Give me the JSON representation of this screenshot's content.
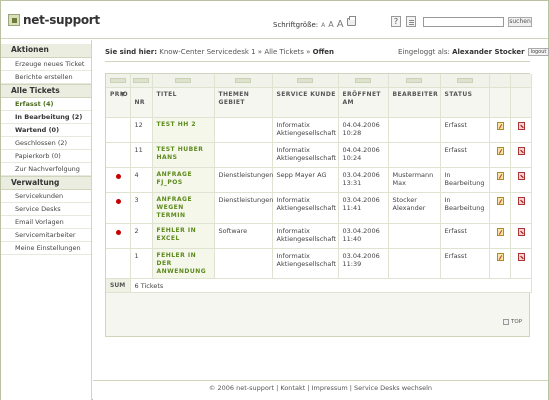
{
  "header": {
    "logo_text": "net-support",
    "fontsize_label": "Schriftgröße:",
    "fontsize_a": "A",
    "search_button": "suchen",
    "search_placeholder": "",
    "help_glyph": "?"
  },
  "sidebar": {
    "sections": [
      {
        "title": "Aktionen",
        "items": [
          {
            "label": "Erzeuge neues Ticket",
            "style": "normal"
          },
          {
            "label": "Berichte erstellen",
            "style": "normal"
          }
        ]
      },
      {
        "title": "Alle Tickets",
        "items": [
          {
            "label": "Erfasst (4)",
            "style": "sel"
          },
          {
            "label": "In Bearbeitung (2)",
            "style": "bold"
          },
          {
            "label": "Wartend (0)",
            "style": "bold"
          },
          {
            "label": "Geschlossen (2)",
            "style": "normal"
          },
          {
            "label": "Papierkorb (0)",
            "style": "normal"
          },
          {
            "label": "Zur Nachverfolgung",
            "style": "normal"
          }
        ]
      },
      {
        "title": "Verwaltung",
        "items": [
          {
            "label": "Servicekunden",
            "style": "normal"
          },
          {
            "label": "Service Desks",
            "style": "normal"
          },
          {
            "label": "Email Vorlagen",
            "style": "normal"
          },
          {
            "label": "Servicemitarbeiter",
            "style": "normal"
          },
          {
            "label": "Meine Einstellungen",
            "style": "normal"
          }
        ]
      }
    ]
  },
  "breadcrumb": {
    "here": "Sie sind hier:",
    "path": " Know-Center Servicedesk 1 » Alle Tickets » ",
    "current": "Offen"
  },
  "login": {
    "label": "Eingeloggt als: ",
    "user": "Alexander Stocker",
    "logout": "logout"
  },
  "table": {
    "columns": [
      "PRIO",
      "NR",
      "TITEL",
      "THEMEN GEBIET",
      "SERVICE KUNDE",
      "ERÖFFNET AM",
      "BEARBEITER",
      "STATUS",
      "",
      ""
    ],
    "sort_marker": "▼",
    "rows": [
      {
        "prio": false,
        "nr": "12",
        "title": "TEST HH 2",
        "topic": "",
        "customer": "Informatix Aktiengesellschaft",
        "opened": "04.04.2006 10:28",
        "assignee": "",
        "status": "Erfasst"
      },
      {
        "prio": false,
        "nr": "11",
        "title": "TEST HUBER HANS",
        "topic": "",
        "customer": "Informatix Aktiengesellschaft",
        "opened": "04.04.2006 10:24",
        "assignee": "",
        "status": "Erfasst"
      },
      {
        "prio": true,
        "nr": "4",
        "title": "ANFRAGE FJ_POS",
        "topic": "Dienstleistungen",
        "customer": "Sepp Mayer AG",
        "opened": "03.04.2006 13:31",
        "assignee": "Mustermann Max",
        "status": "In Bearbeitung"
      },
      {
        "prio": true,
        "nr": "3",
        "title": "ANFRAGE WEGEN TERMIN",
        "topic": "Dienstleistungen",
        "customer": "Informatix Aktiengesellschaft",
        "opened": "03.04.2006 11:41",
        "assignee": "Stocker Alexander",
        "status": "In Bearbeitung"
      },
      {
        "prio": true,
        "nr": "2",
        "title": "FEHLER IN EXCEL",
        "topic": "Software",
        "customer": "Informatix Aktiengesellschaft",
        "opened": "03.04.2006 11:40",
        "assignee": "",
        "status": "Erfasst"
      },
      {
        "prio": false,
        "nr": "1",
        "title": "FEHLER IN DER ANWENDUNG",
        "topic": "",
        "customer": "Informatix Aktiengesellschaft",
        "opened": "03.04.2006 11:39",
        "assignee": "",
        "status": "Erfasst"
      }
    ],
    "sum_label": "SUM",
    "sum_value": "6 Tickets"
  },
  "top_link": "TOP",
  "footer": "© 2006 net-support | Kontakt | Impressum | Service Desks wechseln",
  "colors": {
    "accent": "#5c8a1c",
    "prio": "#c40000",
    "panel": "#eaede0"
  }
}
